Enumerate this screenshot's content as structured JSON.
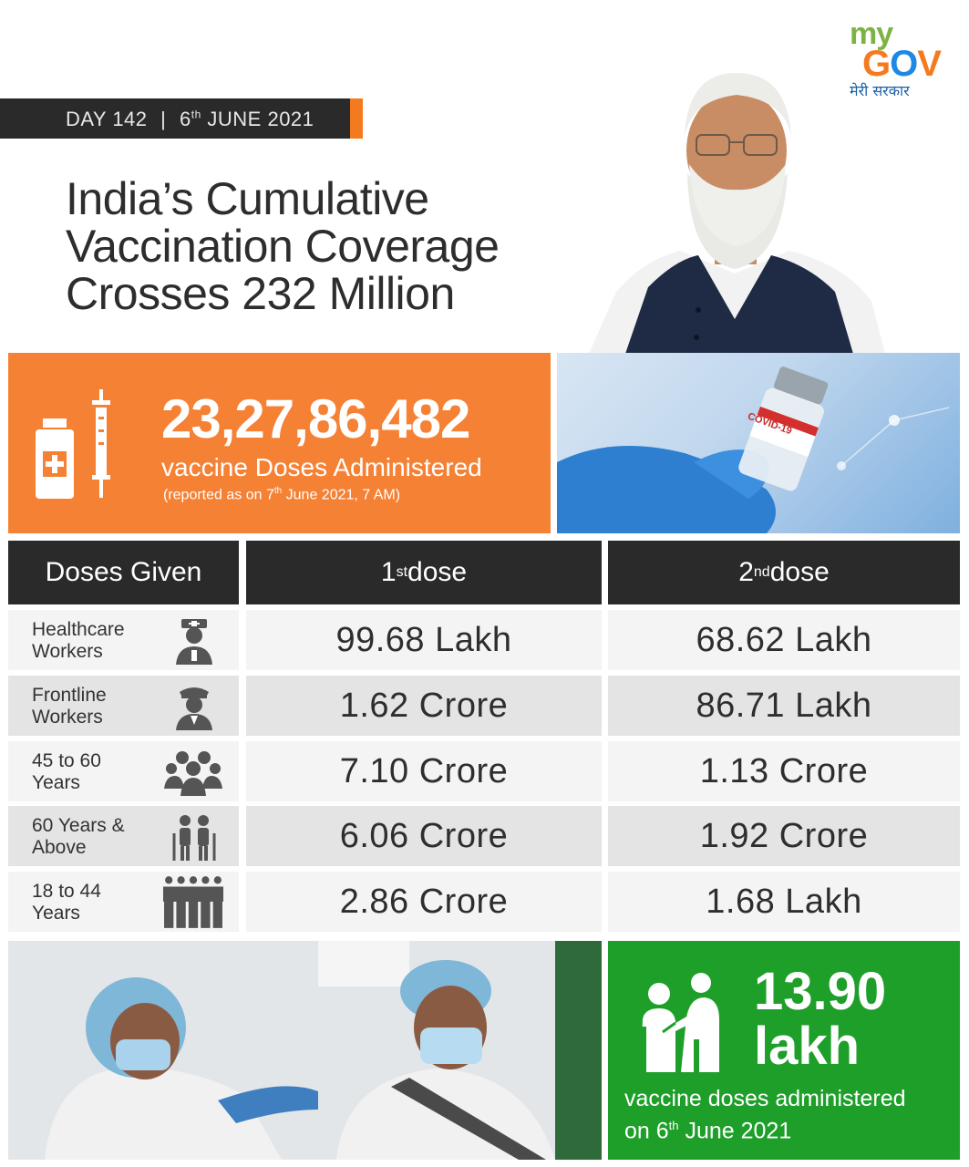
{
  "logo": {
    "my": "my",
    "gov_g": "G",
    "gov_o": "O",
    "gov_v": "V",
    "hindi": "मेरी सरकार"
  },
  "date_bar": {
    "day": "DAY 142",
    "separator": "|",
    "date_num": "6",
    "date_sup": "th",
    "date_rest": "JUNE 2021"
  },
  "headline": {
    "line1": "India’s Cumulative",
    "line2": "Vaccination Coverage",
    "line3": "Crosses 232 Million"
  },
  "total": {
    "value": "23,27,86,482",
    "label": "vaccine Doses Administered",
    "note_pre": "(reported as on 7",
    "note_sup": "th",
    "note_post": " June 2021, 7 AM)"
  },
  "vial_label": "COVID-19",
  "table": {
    "header_label": "Doses Given",
    "col1_num": "1",
    "col1_sup": "st",
    "col1_text": " dose",
    "col2_num": "2",
    "col2_sup": "nd",
    "col2_text": " dose",
    "rows": [
      {
        "line1": "Healthcare",
        "line2": "Workers",
        "icon": "nurse-icon",
        "dose1": "99.68 Lakh",
        "dose2": "68.62 Lakh"
      },
      {
        "line1": "Frontline",
        "line2": "Workers",
        "icon": "officer-icon",
        "dose1": "1.62 Crore",
        "dose2": "86.71 Lakh"
      },
      {
        "line1": "45 to 60",
        "line2": "Years",
        "icon": "group-icon",
        "dose1": "7.10 Crore",
        "dose2": "1.13 Crore"
      },
      {
        "line1": "60 Years &",
        "line2": "Above",
        "icon": "elderly-couple-icon",
        "dose1": "6.06 Crore",
        "dose2": "1.92 Crore"
      },
      {
        "line1": "18 to 44",
        "line2": "Years",
        "icon": "crowd-icon",
        "dose1": "2.86 Crore",
        "dose2": "1.68 Lakh"
      }
    ]
  },
  "daily": {
    "value": "13.90",
    "unit": "lakh",
    "desc_line1": "vaccine doses administered",
    "desc_pre": "on 6",
    "desc_sup": "th",
    "desc_post": " June 2021"
  },
  "colors": {
    "orange": "#f58134",
    "green": "#1e9f2a",
    "dark": "#2a2a2a"
  }
}
